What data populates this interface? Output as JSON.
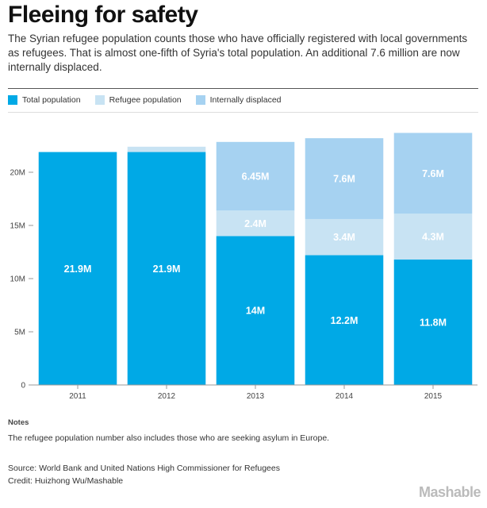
{
  "header": {
    "title": "Fleeing for safety",
    "subtitle": "The Syrian refugee population counts those who have officially registered with local governments as refugees. That is almost one-fifth of Syria's total population. An additional 7.6 million are now internally displaced."
  },
  "colors": {
    "total": "#00a9e6",
    "refugee": "#c8e3f3",
    "displaced": "#a6d2f1"
  },
  "legend": [
    {
      "label": "Total population",
      "color": "#00a9e6"
    },
    {
      "label": "Refugee population",
      "color": "#c8e3f3"
    },
    {
      "label": "Internally displaced",
      "color": "#a6d2f1"
    }
  ],
  "chart_data": {
    "type": "bar",
    "stacked": true,
    "title": "Fleeing for safety",
    "xlabel": "",
    "ylabel": "",
    "ylim": [
      0,
      25
    ],
    "yticks": [
      0,
      5,
      10,
      15,
      20
    ],
    "ytick_labels": [
      "0",
      "5M",
      "10M",
      "15M",
      "20M"
    ],
    "categories": [
      "2011",
      "2012",
      "2013",
      "2014",
      "2015"
    ],
    "series": [
      {
        "name": "Total population",
        "values": [
          21.9,
          21.9,
          14,
          12.2,
          11.8
        ],
        "labels": [
          "21.9M",
          "21.9M",
          "14M",
          "12.2M",
          "11.8M"
        ]
      },
      {
        "name": "Refugee population",
        "values": [
          0,
          0.5,
          2.4,
          3.4,
          4.3
        ],
        "labels": [
          "",
          "",
          "2.4M",
          "3.4M",
          "4.3M"
        ]
      },
      {
        "name": "Internally displaced",
        "values": [
          0,
          0,
          6.45,
          7.6,
          7.6
        ],
        "labels": [
          "",
          "",
          "6.45M",
          "7.6M",
          "7.6M"
        ]
      }
    ]
  },
  "notes": {
    "heading": "Notes",
    "text": "The refugee population number also includes those who are seeking asylum in Europe."
  },
  "source": {
    "line1": "Source: World Bank and United Nations High Commissioner for Refugees",
    "line2": "Credit: Huizhong Wu/Mashable"
  },
  "brand": "Mashable"
}
